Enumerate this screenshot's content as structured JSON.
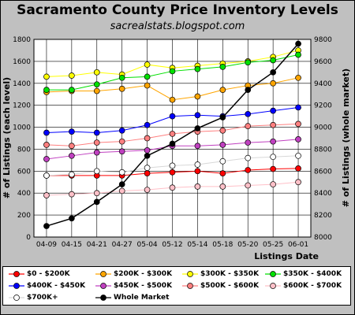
{
  "header": {
    "title": "Sacramento County Price Inventory Levels",
    "subtitle": "sacrealstats.blogspot.com"
  },
  "chart_data": {
    "type": "line",
    "title": "Sacramento County Price Inventory Levels",
    "subtitle": "sacrealstats.blogspot.com",
    "xlabel": "Listings Date",
    "ylabel": "# of Listings (each level)",
    "y2label": "# of Listings (whole market)",
    "categories": [
      "04-09",
      "04-15",
      "04-21",
      "04-27",
      "05-04",
      "05-12",
      "05-14",
      "05-18",
      "05-20",
      "05-25",
      "06-01"
    ],
    "ylim": [
      0,
      1800
    ],
    "yticks": [
      "0",
      "200",
      "400",
      "600",
      "800",
      "1000",
      "1200",
      "1400",
      "1600",
      "1800"
    ],
    "y2lim": [
      8000,
      9800
    ],
    "y2ticks": [
      "8000",
      "8200",
      "8400",
      "8600",
      "8800",
      "9000",
      "9200",
      "9400",
      "9600",
      "9800"
    ],
    "grid": true,
    "legend_position": "bottom",
    "series": [
      {
        "name": "$0 - $200K",
        "color": "#ff0000",
        "axis": "left",
        "values": [
          560,
          560,
          560,
          560,
          580,
          590,
          600,
          580,
          610,
          620,
          625
        ]
      },
      {
        "name": "$200K - $300K",
        "color": "#ffa500",
        "axis": "left",
        "values": [
          1320,
          1330,
          1330,
          1350,
          1380,
          1250,
          1280,
          1340,
          1380,
          1400,
          1450
        ]
      },
      {
        "name": "$300K - $350K",
        "color": "#ffff00",
        "axis": "left",
        "values": [
          1460,
          1470,
          1500,
          1480,
          1570,
          1540,
          1560,
          1580,
          1600,
          1640,
          1700
        ]
      },
      {
        "name": "$350K - $400K",
        "color": "#00e000",
        "axis": "left",
        "values": [
          1340,
          1340,
          1390,
          1450,
          1460,
          1510,
          1530,
          1550,
          1590,
          1610,
          1660
        ]
      },
      {
        "name": "$400K - $450K",
        "color": "#0000ff",
        "axis": "left",
        "values": [
          950,
          960,
          950,
          970,
          1020,
          1100,
          1110,
          1100,
          1120,
          1150,
          1180
        ]
      },
      {
        "name": "$450K - $500K",
        "color": "#c040c0",
        "axis": "left",
        "values": [
          710,
          740,
          770,
          780,
          790,
          830,
          830,
          840,
          860,
          870,
          890
        ]
      },
      {
        "name": "$500K - $600K",
        "color": "#ff8080",
        "axis": "left",
        "values": [
          840,
          830,
          860,
          870,
          900,
          940,
          960,
          970,
          1010,
          1020,
          1030
        ]
      },
      {
        "name": "$600K - $700K",
        "color": "#ffc0c8",
        "axis": "left",
        "values": [
          380,
          390,
          400,
          420,
          430,
          450,
          460,
          460,
          470,
          480,
          500
        ]
      },
      {
        "name": "$700K+",
        "color": "#ffffff",
        "axis": "left",
        "values": [
          560,
          570,
          600,
          590,
          630,
          650,
          660,
          690,
          720,
          730,
          740
        ]
      },
      {
        "name": "Whole Market",
        "color": "#000000",
        "axis": "right",
        "values": [
          8100,
          8170,
          8320,
          8480,
          8740,
          8850,
          8990,
          9090,
          9340,
          9500,
          9760
        ]
      }
    ]
  },
  "legend": {
    "items": [
      "$0 - $200K",
      "$200K - $300K",
      "$300K - $350K",
      "$350K - $400K",
      "$400K - $450K",
      "$450K - $500K",
      "$500K - $600K",
      "$600K - $700K",
      "$700K+",
      "Whole Market"
    ]
  }
}
